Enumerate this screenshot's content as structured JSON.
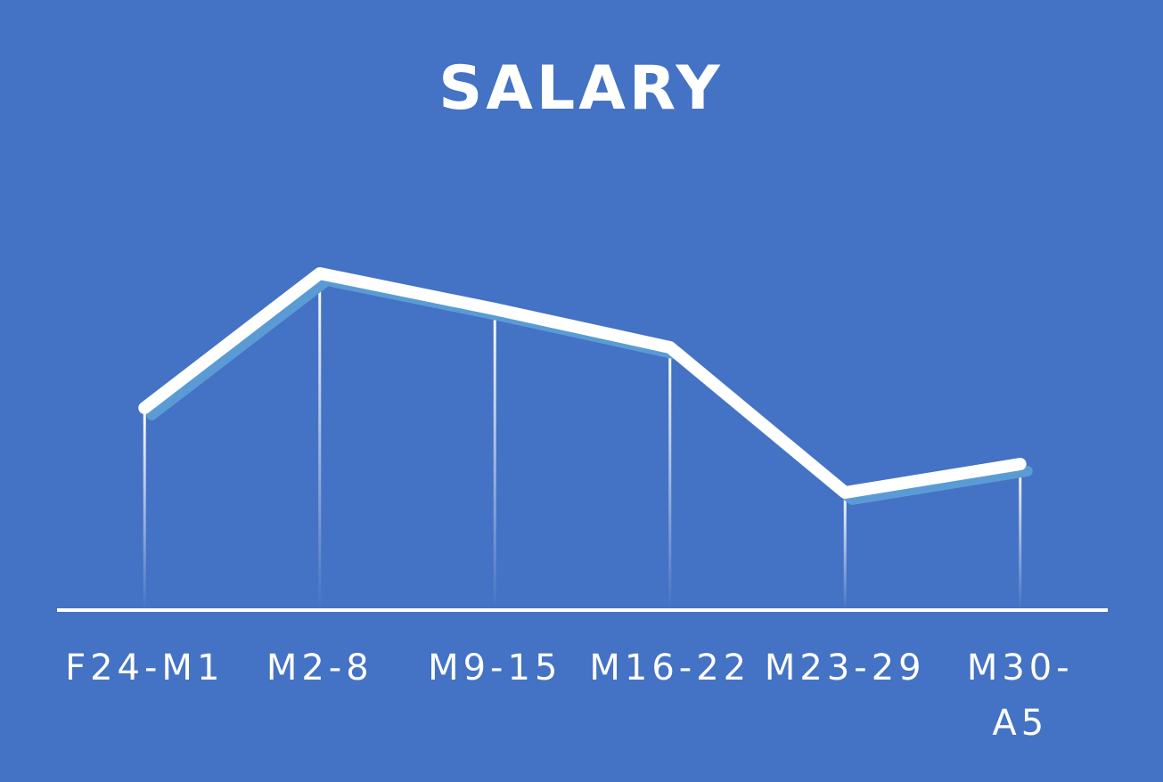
{
  "chart_data": {
    "type": "line",
    "title": "SALARY",
    "categories": [
      "F24-M1",
      "M2-8",
      "M9-15",
      "M16-22",
      "M23-29",
      "M30-A5"
    ],
    "series": [
      {
        "name": "Salary",
        "color": "#ffffff",
        "values": [
          227,
          378,
          338,
          295,
          132,
          164
        ]
      }
    ],
    "ylim": [
      0,
      500
    ]
  }
}
